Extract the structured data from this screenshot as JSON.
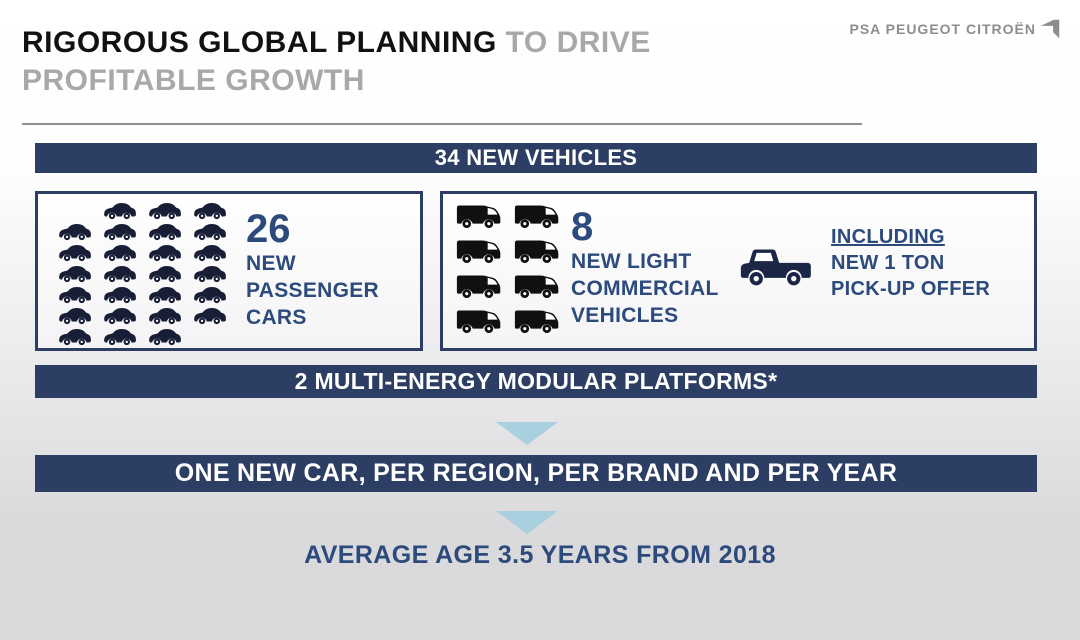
{
  "header": {
    "title_strong": "RIGOROUS GLOBAL PLANNING",
    "title_light": " TO DRIVE",
    "title_line2": "PROFITABLE GROWTH",
    "logo_text": "PSA PEUGEOT CITROËN"
  },
  "banners": {
    "vehicles": "34 NEW VEHICLES",
    "platforms": "2 MULTI-ENERGY MODULAR PLATFORMS*",
    "one_new_car": "ONE NEW CAR, PER REGION, PER BRAND AND PER YEAR"
  },
  "passenger": {
    "count": "26",
    "labels": [
      "NEW",
      "PASSENGER",
      "CARS"
    ],
    "icon_rows": [
      [
        1,
        3
      ],
      [
        0,
        4
      ],
      [
        0,
        4
      ],
      [
        0,
        4
      ],
      [
        0,
        4
      ],
      [
        0,
        4
      ],
      [
        0,
        3
      ]
    ]
  },
  "commercial": {
    "count": "8",
    "labels": [
      "NEW LIGHT",
      "COMMERCIAL",
      "VEHICLES"
    ],
    "van_rows": 4,
    "van_cols": 2,
    "including_lines": [
      "INCLUDING",
      "NEW 1 TON",
      "PICK-UP OFFER"
    ]
  },
  "footer": "AVERAGE AGE 3.5 YEARS FROM 2018",
  "colors": {
    "navy_banner": "#2c3e63",
    "blue_text": "#2d4a7d",
    "icon_navy": "#171e36",
    "van_black": "#101010",
    "pickup_navy": "#1c2747",
    "arrow_blue": "#a9d0de",
    "title_gray": "#a8a8a8",
    "logo_gray": "#8b8d90"
  }
}
